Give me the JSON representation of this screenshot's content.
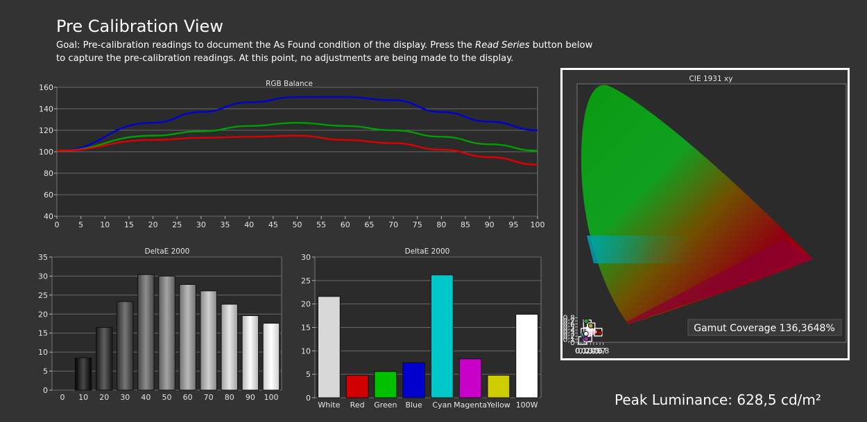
{
  "header": {
    "title": "Pre Calibration View",
    "desc_part1": "Goal: Pre-calibration readings to document the As Found condition of the display. Press the ",
    "desc_italic": "Read Series",
    "desc_part2": " button below to capture the pre-calibration readings. At this point, no adjustments are being made to the display."
  },
  "footer": {
    "peak_luminance": "Peak Luminance: 628,5 cd/m²"
  },
  "chart_data": [
    {
      "type": "line",
      "title": "RGB Balance",
      "x": [
        0,
        20,
        30,
        40,
        50,
        60,
        70,
        80,
        90,
        100
      ],
      "xticks": [
        "0",
        "5",
        "10",
        "15",
        "20",
        "25",
        "30",
        "35",
        "40",
        "45",
        "50",
        "55",
        "60",
        "65",
        "70",
        "75",
        "80",
        "85",
        "90",
        "95",
        "100"
      ],
      "yticks": [
        "40",
        "60",
        "80",
        "100",
        "120",
        "140",
        "160"
      ],
      "ylim": [
        40,
        160
      ],
      "xlim": [
        0,
        100
      ],
      "grid": true,
      "series": [
        {
          "color": "#0000d0",
          "values": [
            101,
            127,
            137,
            146,
            151,
            151,
            148,
            137,
            128,
            120
          ]
        },
        {
          "color": "#00a000",
          "values": [
            101,
            115,
            119,
            124,
            127,
            124,
            120,
            114,
            107,
            101
          ]
        },
        {
          "color": "#e00000",
          "values": [
            101,
            111,
            113,
            114,
            115,
            111,
            108,
            102,
            95,
            88
          ]
        }
      ]
    },
    {
      "type": "bar",
      "title": "DeltaE 2000",
      "categories": [
        "0",
        "10",
        "20",
        "30",
        "40",
        "50",
        "60",
        "70",
        "80",
        "90",
        "100"
      ],
      "values": [
        0,
        8.5,
        16.5,
        23.3,
        30.4,
        30.0,
        27.8,
        26.1,
        22.6,
        19.6,
        17.6
      ],
      "yticks": [
        "0",
        "5",
        "10",
        "15",
        "20",
        "25",
        "30",
        "35"
      ],
      "ylim": [
        0,
        35
      ],
      "grid": true
    },
    {
      "type": "bar",
      "title": "DeltaE 2000",
      "categories": [
        "White",
        "Red",
        "Green",
        "Blue",
        "Cyan",
        "Magenta",
        "Yellow",
        "100W"
      ],
      "values": [
        21.6,
        4.8,
        5.6,
        7.5,
        26.2,
        8.3,
        4.8,
        17.8
      ],
      "colors": [
        "#d8d8d8",
        "#d00000",
        "#00c000",
        "#0000cc",
        "#00c8c8",
        "#c800c8",
        "#cccc00",
        "#ffffff"
      ],
      "yticks": [
        "0",
        "5",
        "10",
        "15",
        "20",
        "25",
        "30"
      ],
      "ylim": [
        0,
        30
      ],
      "grid": true
    },
    {
      "type": "scatter",
      "title": "CIE 1931 xy",
      "xticks": [
        "0",
        "0,1",
        "0,2",
        "0,3",
        "0,4",
        "0,5",
        "0,6",
        "0,7",
        "0,8"
      ],
      "yticks": [
        "0",
        "0,1",
        "0,2",
        "0,3",
        "0,4",
        "0,5",
        "0,6",
        "0,7",
        "0,8"
      ],
      "xlim": [
        0,
        0.8
      ],
      "ylim": [
        0,
        0.8
      ],
      "gamut_coverage": "Gamut Coverage 136,3648%",
      "targets": [
        {
          "x": 0.3,
          "y": 0.6
        },
        {
          "x": 0.64,
          "y": 0.33
        },
        {
          "x": 0.15,
          "y": 0.06
        },
        {
          "x": 0.419,
          "y": 0.505
        },
        {
          "x": 0.225,
          "y": 0.329
        },
        {
          "x": 0.321,
          "y": 0.154
        },
        {
          "x": 0.3127,
          "y": 0.329
        }
      ],
      "measured": [
        {
          "x": 0.265,
          "y": 0.69,
          "color": "#30a030"
        },
        {
          "x": 0.41,
          "y": 0.54,
          "color": "#b0b030"
        },
        {
          "x": 0.685,
          "y": 0.315,
          "color": "#b00000"
        },
        {
          "x": 0.175,
          "y": 0.245,
          "color": "#30a0a0"
        },
        {
          "x": 0.265,
          "y": 0.115,
          "color": "#a030a0"
        },
        {
          "x": 0.245,
          "y": 0.255,
          "color": "#ffffff"
        },
        {
          "x": 0.26,
          "y": 0.28,
          "color": "#ffffff"
        }
      ]
    }
  ]
}
